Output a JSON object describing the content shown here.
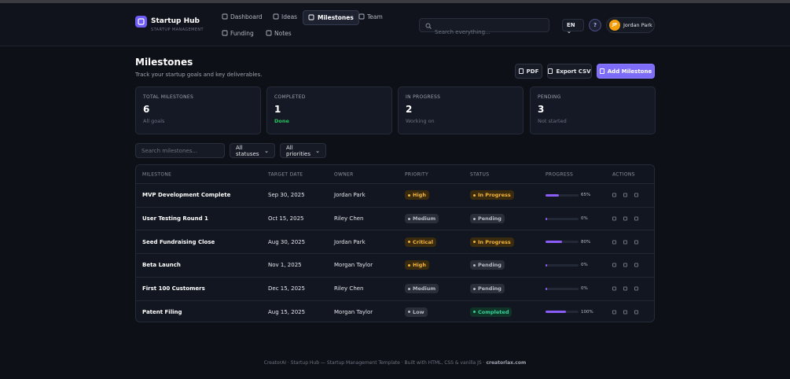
{
  "brand": {
    "name": "Startup Hub",
    "tagline": "STARTUP MANAGEMENT"
  },
  "nav": [
    "Dashboard",
    "Ideas",
    "Milestones",
    "Team",
    "Funding",
    "Notes"
  ],
  "search_placeholder": "Search everything...",
  "language": "EN",
  "help": "?",
  "user": {
    "initials": "JP",
    "name": "Jordan Park"
  },
  "page": {
    "title": "Milestones",
    "subtitle": "Track your startup goals and key deliverables."
  },
  "actions": [
    "PDF",
    "Export CSV",
    "Add Milestone"
  ],
  "stats": [
    {
      "label": "TOTAL MILESTONES",
      "value": 6,
      "note": "All goals"
    },
    {
      "label": "COMPLETED",
      "value": 1,
      "note": "Done"
    },
    {
      "label": "IN PROGRESS",
      "value": 2,
      "note": "Working on"
    },
    {
      "label": "PENDING",
      "value": 3,
      "note": "Not started"
    }
  ],
  "filters": {
    "search_placeholder": "Search milestones...",
    "status": "All statuses",
    "priority": "All priorities"
  },
  "table": {
    "columns": [
      "MILESTONE",
      "TARGET DATE",
      "OWNER",
      "PRIORITY",
      "STATUS",
      "PROGRESS",
      "ACTIONS"
    ],
    "rows": [
      {
        "milestone": "MVP Development Complete",
        "target_date": "Sep 30, 2025",
        "owner": "Jordan Park",
        "priority": "High",
        "status": "In Progress",
        "progress": 65,
        "progress_label": "65%"
      },
      {
        "milestone": "User Testing Round 1",
        "target_date": "Oct 15, 2025",
        "owner": "Riley Chen",
        "priority": "Medium",
        "status": "Pending",
        "progress": 0,
        "progress_label": "0%"
      },
      {
        "milestone": "Seed Fundraising Close",
        "target_date": "Aug 30, 2025",
        "owner": "Jordan Park",
        "priority": "Critical",
        "status": "In Progress",
        "progress": 80,
        "progress_label": "80%"
      },
      {
        "milestone": "Beta Launch",
        "target_date": "Nov 1, 2025",
        "owner": "Morgan Taylor",
        "priority": "High",
        "status": "Pending",
        "progress": 0,
        "progress_label": "0%"
      },
      {
        "milestone": "First 100 Customers",
        "target_date": "Dec 15, 2025",
        "owner": "Riley Chen",
        "priority": "Medium",
        "status": "Pending",
        "progress": 0,
        "progress_label": "0%"
      },
      {
        "milestone": "Patent Filing",
        "target_date": "Aug 15, 2025",
        "owner": "Morgan Taylor",
        "priority": "Low",
        "status": "Completed",
        "progress": 100,
        "progress_label": "100%"
      }
    ]
  },
  "footer": {
    "text": "CreatorAI · Startup Hub — Startup Management Template · Built with HTML, CSS & vanilla JS ·",
    "link": "creatorlax.com"
  }
}
